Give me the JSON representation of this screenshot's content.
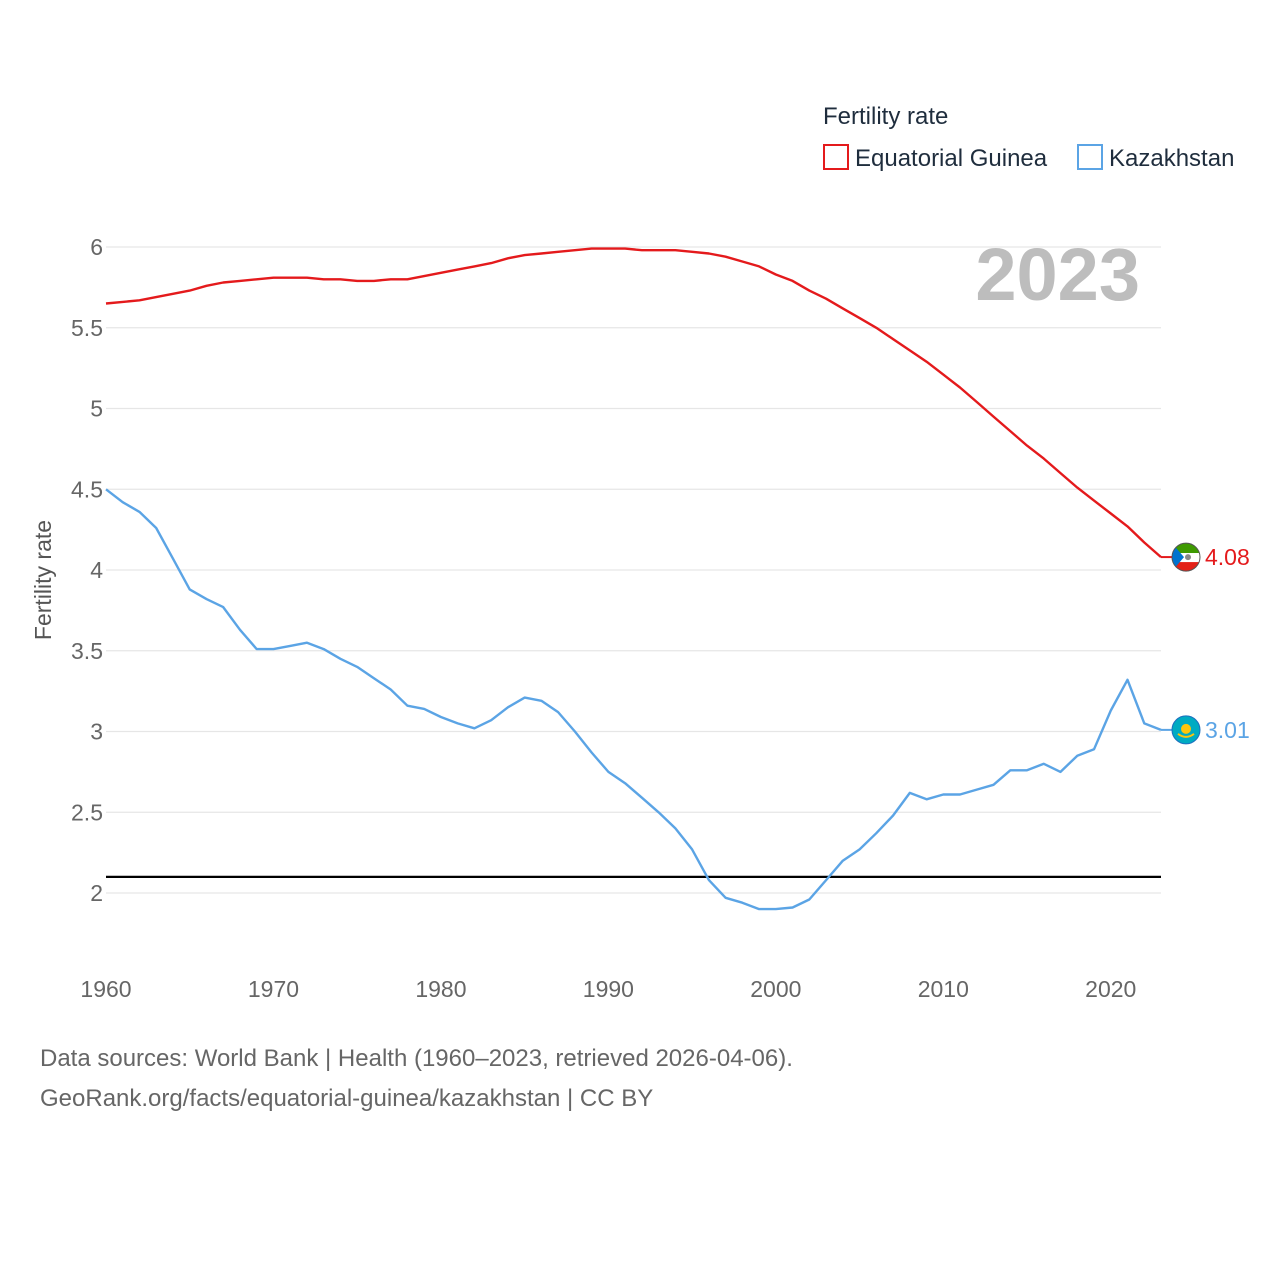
{
  "chart_data": {
    "type": "line",
    "title": "",
    "xlabel": "",
    "ylabel": "Fertility rate",
    "xlim": [
      1960,
      2023
    ],
    "ylim": [
      1.6,
      6.2
    ],
    "xticks": [
      1960,
      1970,
      1980,
      1990,
      2000,
      2010,
      2020
    ],
    "yticks": [
      2,
      2.5,
      3,
      3.5,
      4,
      4.5,
      5,
      5.5,
      6
    ],
    "ytick_labels": [
      "2",
      "2.5",
      "3",
      "3.5",
      "4",
      "4.5",
      "5",
      "5.5",
      "6"
    ],
    "reference_line": 2.1,
    "year_label": "2023",
    "legend": {
      "title": "Fertility rate",
      "placement": "top-right"
    },
    "x": [
      1960,
      1961,
      1962,
      1963,
      1964,
      1965,
      1966,
      1967,
      1968,
      1969,
      1970,
      1971,
      1972,
      1973,
      1974,
      1975,
      1976,
      1977,
      1978,
      1979,
      1980,
      1981,
      1982,
      1983,
      1984,
      1985,
      1986,
      1987,
      1988,
      1989,
      1990,
      1991,
      1992,
      1993,
      1994,
      1995,
      1996,
      1997,
      1998,
      1999,
      2000,
      2001,
      2002,
      2003,
      2004,
      2005,
      2006,
      2007,
      2008,
      2009,
      2010,
      2011,
      2012,
      2013,
      2014,
      2015,
      2016,
      2017,
      2018,
      2019,
      2020,
      2021,
      2022,
      2023
    ],
    "series": [
      {
        "name": "Equatorial Guinea",
        "color": "#e41a1c",
        "end_label": "4.08",
        "values": [
          5.65,
          5.66,
          5.67,
          5.69,
          5.71,
          5.73,
          5.76,
          5.78,
          5.79,
          5.8,
          5.81,
          5.81,
          5.81,
          5.8,
          5.8,
          5.79,
          5.79,
          5.8,
          5.8,
          5.82,
          5.84,
          5.86,
          5.88,
          5.9,
          5.93,
          5.95,
          5.96,
          5.97,
          5.98,
          5.99,
          5.99,
          5.99,
          5.98,
          5.98,
          5.98,
          5.97,
          5.96,
          5.94,
          5.91,
          5.88,
          5.83,
          5.79,
          5.73,
          5.68,
          5.62,
          5.56,
          5.5,
          5.43,
          5.36,
          5.29,
          5.21,
          5.13,
          5.04,
          4.95,
          4.86,
          4.77,
          4.69,
          4.6,
          4.51,
          4.43,
          4.35,
          4.27,
          4.17,
          4.08
        ]
      },
      {
        "name": "Kazakhstan",
        "color": "#5ba4e5",
        "end_label": "3.01",
        "values": [
          4.5,
          4.42,
          4.36,
          4.26,
          4.07,
          3.88,
          3.82,
          3.77,
          3.63,
          3.51,
          3.51,
          3.53,
          3.55,
          3.51,
          3.45,
          3.4,
          3.33,
          3.26,
          3.16,
          3.14,
          3.09,
          3.05,
          3.02,
          3.07,
          3.15,
          3.21,
          3.19,
          3.12,
          3.0,
          2.87,
          2.75,
          2.68,
          2.59,
          2.5,
          2.4,
          2.27,
          2.08,
          1.97,
          1.94,
          1.9,
          1.9,
          1.91,
          1.96,
          2.08,
          2.2,
          2.27,
          2.37,
          2.48,
          2.62,
          2.58,
          2.61,
          2.61,
          2.64,
          2.67,
          2.76,
          2.76,
          2.8,
          2.75,
          2.85,
          2.89,
          3.13,
          3.32,
          3.05,
          3.01
        ]
      }
    ]
  },
  "source": {
    "line1": "Data sources: World Bank | Health (1960–2023, retrieved 2026-04-06).",
    "line2": "GeoRank.org/facts/equatorial-guinea/kazakhstan | CC BY"
  }
}
